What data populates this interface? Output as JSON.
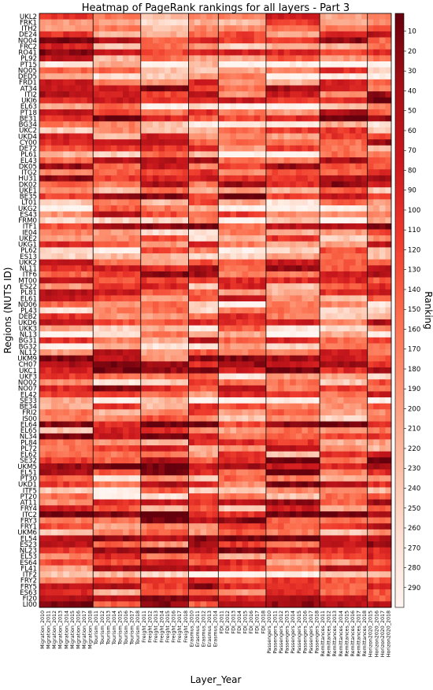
{
  "chart_data": {
    "type": "heatmap",
    "title": "Heatmap of PageRank rankings for all layers - Part 3",
    "xlabel": "Layer_Year",
    "ylabel": "Regions (NUTS ID)",
    "colorbar_label": "Ranking",
    "colorbar_ticks": [
      10,
      20,
      30,
      40,
      50,
      60,
      70,
      80,
      90,
      100,
      110,
      120,
      130,
      140,
      150,
      160,
      170,
      180,
      190,
      200,
      210,
      220,
      230,
      240,
      250,
      260,
      270,
      280,
      290
    ],
    "colorbar_range": [
      1,
      300
    ],
    "colormap": "Reds reversed (dark red = low ranking number, white = high ranking number)",
    "colors": {
      "low_rank": "#67000d",
      "mid_rank": "#fb6a4a",
      "high_rank": "#fff5f0"
    },
    "regions": [
      "UKL2",
      "FRK1",
      "ITH2",
      "DE24",
      "NO04",
      "FRC2",
      "RO41",
      "PL92",
      "PT15",
      "NO05",
      "DED5",
      "FRD1",
      "AT34",
      "ITI2",
      "UKI6",
      "EL63",
      "PT18",
      "BE31",
      "BG34",
      "UKC2",
      "UKD4",
      "CY00",
      "DE72",
      "PL61",
      "EL43",
      "DK05",
      "ITG2",
      "HU31",
      "DK02",
      "UKE1",
      "BE35",
      "LT01",
      "UKG2",
      "ES43",
      "FRM0",
      "ITF1",
      "IE04",
      "UKE2",
      "UKG1",
      "PL62",
      "ES13",
      "UKK2",
      "NL11",
      "ITF6",
      "MT00",
      "ES22",
      "PL81",
      "EL61",
      "NO06",
      "PL43",
      "DEB2",
      "UKD6",
      "UKK3",
      "NL13",
      "BG31",
      "BG32",
      "NL12",
      "UKM9",
      "CH07",
      "UKC1",
      "UKF3",
      "NO02",
      "NO07",
      "EL42",
      "SE33",
      "BE34",
      "FRI2",
      "IS00",
      "EL64",
      "EL65",
      "NL34",
      "PL84",
      "PL72",
      "EL62",
      "SE32",
      "UKM5",
      "EL51",
      "PT30",
      "UKD1",
      "ITF5",
      "PT20",
      "AT11",
      "FRY4",
      "ITC2",
      "FRY3",
      "FRY1",
      "UKM6",
      "EL54",
      "ES23",
      "NL23",
      "EL53",
      "ES64",
      "FL41",
      "ITF2",
      "FRY2",
      "FRY5",
      "ES63",
      "FI20",
      "LI00"
    ],
    "layers": [
      {
        "name": "Migration",
        "years": [
          2010,
          2011,
          2012,
          2013,
          2014,
          2015,
          2016,
          2017,
          2018
        ]
      },
      {
        "name": "Tourism",
        "years": [
          2011,
          2012,
          2013,
          2014,
          2015,
          2016,
          2017,
          2018
        ]
      },
      {
        "name": "Freight",
        "years": [
          2011,
          2012,
          2013,
          2014,
          2015,
          2016,
          2017,
          2018
        ]
      },
      {
        "name": "Erasmus",
        "years": [
          2010,
          2011,
          2012,
          2013,
          2014
        ]
      },
      {
        "name": "FDI",
        "years": [
          2011,
          2012,
          2013,
          2014,
          2015,
          2016,
          2017,
          2018
        ]
      },
      {
        "name": "Passengers",
        "years": [
          2010,
          2011,
          2012,
          2013,
          2014,
          2015,
          2016,
          2017,
          2018
        ]
      },
      {
        "name": "Remittances",
        "years": [
          2011,
          2012,
          2013,
          2014,
          2015,
          2016,
          2017,
          2018
        ]
      },
      {
        "name": "Horizon2020",
        "years": [
          2015,
          2016,
          2017,
          2018
        ]
      }
    ],
    "x_tick_labels": [
      "Migration_2010",
      "Migration_2011",
      "Migration_2012",
      "Migration_2013",
      "Migration_2014",
      "Migration_2015",
      "Migration_2016",
      "Migration_2017",
      "Migration_2018",
      "Tourism_2011",
      "Tourism_2012",
      "Tourism_2013",
      "Tourism_2014",
      "Tourism_2015",
      "Tourism_2016",
      "Tourism_2017",
      "Tourism_2018",
      "Freight_2011",
      "Freight_2012",
      "Freight_2013",
      "Freight_2014",
      "Freight_2015",
      "Freight_2016",
      "Freight_2017",
      "Freight_2018",
      "Erasmus_2010",
      "Erasmus_2011",
      "Erasmus_2012",
      "Erasmus_2013",
      "Erasmus_2014",
      "FDI_2011",
      "FDI_2012",
      "FDI_2013",
      "FDI_2014",
      "FDI_2015",
      "FDI_2016",
      "FDI_2017",
      "FDI_2018",
      "Passengers_2010",
      "Passengers_2011",
      "Passengers_2012",
      "Passengers_2013",
      "Passengers_2014",
      "Passengers_2015",
      "Passengers_2016",
      "Passengers_2017",
      "Passengers_2018",
      "Remittances_2011",
      "Remittances_2012",
      "Remittances_2013",
      "Remittances_2014",
      "Remittances_2015",
      "Remittances_2016",
      "Remittances_2017",
      "Remittances_2018",
      "Horizon2020_2015",
      "Horizon2020_2016",
      "Horizon2020_2017",
      "Horizon2020_2018"
    ],
    "values_note": "Per-cell rankings are not printed; cell values are estimated from the color scale (1 = darkest red, 300 = white)."
  }
}
